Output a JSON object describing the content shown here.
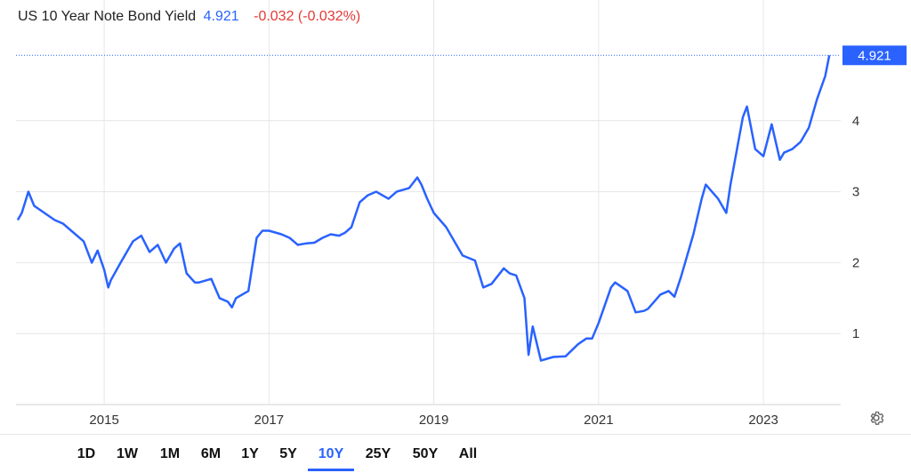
{
  "header": {
    "title": "US 10 Year Note Bond Yield",
    "price": "4.921",
    "change": "-0.032 (-0.032%)"
  },
  "timeframes": [
    "1D",
    "1W",
    "1M",
    "6M",
    "1Y",
    "5Y",
    "10Y",
    "25Y",
    "50Y",
    "All"
  ],
  "active_timeframe": "10Y",
  "colors": {
    "line": "#2962ff",
    "negative": "#e53935",
    "grid": "#e6e6e6"
  },
  "chart_data": {
    "type": "line",
    "title": "US 10 Year Note Bond Yield",
    "xlabel": "",
    "ylabel": "",
    "x_ticks": [
      "2015",
      "2017",
      "2019",
      "2021",
      "2023"
    ],
    "y_ticks": [
      1,
      2,
      3,
      4
    ],
    "xlim": [
      2013.93,
      2023.83
    ],
    "ylim": [
      0,
      5.2
    ],
    "grid": "horizontal",
    "last_value_label": "4.921",
    "series": [
      {
        "x": [
          2013.95,
          2014.0,
          2014.08,
          2014.15,
          2014.25,
          2014.4,
          2014.5,
          2014.6,
          2014.75,
          2014.85,
          2014.92,
          2015.0,
          2015.05,
          2015.08,
          2015.2,
          2015.35,
          2015.45,
          2015.55,
          2015.65,
          2015.75,
          2015.85,
          2015.92,
          2016.0,
          2016.1,
          2016.15,
          2016.3,
          2016.4,
          2016.5,
          2016.55,
          2016.6,
          2016.75,
          2016.85,
          2016.92,
          2017.0,
          2017.15,
          2017.25,
          2017.35,
          2017.45,
          2017.55,
          2017.65,
          2017.75,
          2017.85,
          2017.92,
          2018.0,
          2018.1,
          2018.2,
          2018.3,
          2018.45,
          2018.55,
          2018.7,
          2018.8,
          2018.85,
          2018.92,
          2019.0,
          2019.15,
          2019.35,
          2019.5,
          2019.6,
          2019.7,
          2019.85,
          2019.92,
          2020.0,
          2020.1,
          2020.15,
          2020.2,
          2020.3,
          2020.45,
          2020.6,
          2020.75,
          2020.85,
          2020.92,
          2021.0,
          2021.15,
          2021.2,
          2021.35,
          2021.45,
          2021.55,
          2021.6,
          2021.75,
          2021.85,
          2021.92,
          2022.0,
          2022.15,
          2022.25,
          2022.3,
          2022.45,
          2022.55,
          2022.6,
          2022.75,
          2022.8,
          2022.9,
          2023.0,
          2023.1,
          2023.2,
          2023.25,
          2023.35,
          2023.45,
          2023.55,
          2023.65,
          2023.75,
          2023.8
        ],
        "y": [
          2.6,
          2.7,
          3.0,
          2.8,
          2.72,
          2.6,
          2.55,
          2.45,
          2.3,
          2.0,
          2.17,
          1.9,
          1.65,
          1.75,
          2.0,
          2.3,
          2.38,
          2.15,
          2.25,
          2.0,
          2.2,
          2.27,
          1.85,
          1.72,
          1.72,
          1.77,
          1.5,
          1.45,
          1.37,
          1.5,
          1.6,
          2.35,
          2.45,
          2.45,
          2.4,
          2.35,
          2.25,
          2.27,
          2.28,
          2.35,
          2.4,
          2.38,
          2.42,
          2.5,
          2.85,
          2.95,
          3.0,
          2.9,
          3.0,
          3.05,
          3.2,
          3.1,
          2.9,
          2.7,
          2.5,
          2.1,
          2.03,
          1.65,
          1.7,
          1.92,
          1.85,
          1.82,
          1.5,
          0.7,
          1.1,
          0.62,
          0.67,
          0.68,
          0.85,
          0.93,
          0.93,
          1.15,
          1.65,
          1.72,
          1.6,
          1.3,
          1.32,
          1.35,
          1.55,
          1.6,
          1.52,
          1.8,
          2.4,
          2.9,
          3.1,
          2.9,
          2.7,
          3.1,
          4.05,
          4.2,
          3.6,
          3.5,
          3.95,
          3.45,
          3.55,
          3.6,
          3.7,
          3.9,
          4.3,
          4.63,
          4.921
        ]
      }
    ]
  }
}
